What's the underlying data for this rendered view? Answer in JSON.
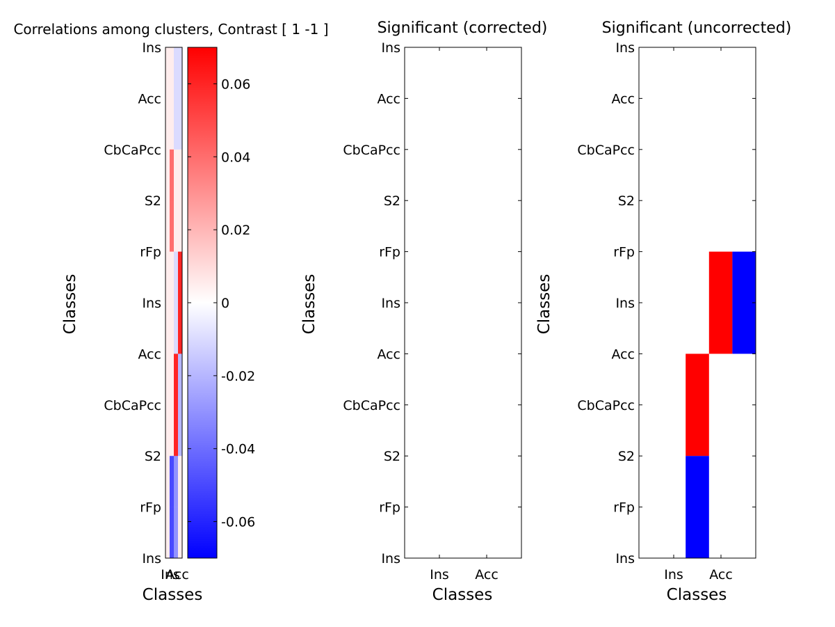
{
  "colors": {
    "positive": "#ff0000",
    "negative": "#0000ff",
    "zero": "#ffffff",
    "axis": "#000000"
  },
  "chart_data": [
    {
      "type": "heatmap",
      "title": "Correlations among clusters, Contrast [ 1 -1 ]",
      "xlabel": "Classes",
      "ylabel": "Classes",
      "x_tick_labels": [
        "Ins",
        "Acc"
      ],
      "y_tick_labels": [
        "Ins",
        "Acc",
        "CbCaPcc",
        "S2",
        "rFp",
        "Ins",
        "Acc",
        "CbCaPcc",
        "S2",
        "rFp",
        "Ins"
      ],
      "n_rows": 10,
      "n_cols": 4,
      "columns": [
        {
          "col": 0,
          "values": [
            0.005,
            0.005,
            0.005,
            0.005,
            0.005,
            0.005,
            0.005,
            0.005,
            0.005,
            0.005
          ]
        },
        {
          "col": 1,
          "values": [
            0.005,
            0.005,
            0.04,
            0.04,
            0.005,
            0.005,
            0.005,
            0.005,
            -0.05,
            -0.05
          ]
        },
        {
          "col": 2,
          "values": [
            -0.01,
            -0.01,
            0.005,
            0.005,
            -0.01,
            -0.01,
            0.06,
            0.06,
            -0.03,
            -0.03
          ]
        },
        {
          "col": 3,
          "values": [
            -0.01,
            -0.01,
            0.005,
            0.005,
            0.06,
            0.06,
            -0.02,
            -0.02,
            0.005,
            0.005
          ]
        }
      ],
      "colorbar": {
        "range": [
          -0.07,
          0.07
        ],
        "ticks": [
          "0.06",
          "0.04",
          "0.02",
          "0",
          "-0.02",
          "-0.04",
          "-0.06"
        ],
        "tick_values": [
          0.06,
          0.04,
          0.02,
          0,
          -0.02,
          -0.04,
          -0.06
        ]
      }
    },
    {
      "type": "heatmap",
      "title": "Significant (corrected)",
      "xlabel": "Classes",
      "ylabel": "Classes",
      "x_tick_labels": [
        "Ins",
        "Acc"
      ],
      "y_tick_labels": [
        "Ins",
        "Acc",
        "CbCaPcc",
        "S2",
        "rFp",
        "Ins",
        "Acc",
        "CbCaPcc",
        "S2",
        "rFp",
        "Ins"
      ],
      "n_rows": 10,
      "n_cols": 5,
      "cells": []
    },
    {
      "type": "heatmap",
      "title": "Significant (uncorrected)",
      "xlabel": "Classes",
      "ylabel": "Classes",
      "x_tick_labels": [
        "Ins",
        "Acc"
      ],
      "y_tick_labels": [
        "Ins",
        "Acc",
        "CbCaPcc",
        "S2",
        "rFp",
        "Ins",
        "Acc",
        "CbCaPcc",
        "S2",
        "rFp",
        "Ins"
      ],
      "n_rows": 10,
      "n_cols": 5,
      "cells": [
        {
          "row_start": 4,
          "row_end": 6,
          "col": 3,
          "sign": 1
        },
        {
          "row_start": 4,
          "row_end": 6,
          "col": 4,
          "sign": -1
        },
        {
          "row_start": 6,
          "row_end": 8,
          "col": 2,
          "sign": 1
        },
        {
          "row_start": 8,
          "row_end": 10,
          "col": 2,
          "sign": -1
        }
      ]
    }
  ]
}
